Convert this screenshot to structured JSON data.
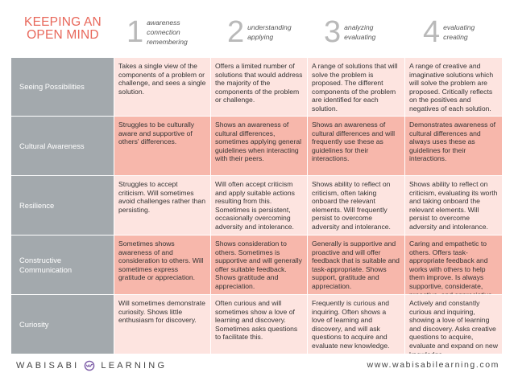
{
  "header": {
    "title_line1": "KEEPING AN",
    "title_line2": "OPEN MIND",
    "levels": [
      {
        "number": "1",
        "lines": [
          "awareness",
          "connection",
          "remembering"
        ]
      },
      {
        "number": "2",
        "lines": [
          "understanding",
          "applying"
        ]
      },
      {
        "number": "3",
        "lines": [
          "analyzing",
          "evaluating"
        ]
      },
      {
        "number": "4",
        "lines": [
          "evaluating",
          "creating"
        ]
      }
    ]
  },
  "rows": [
    {
      "label": "Seeing Possibilities",
      "cells": [
        "Takes a single view of the components of a problem or challenge, and sees a single solution.",
        "Offers a limited number of solutions that would address the majority of the components of the problem or challenge.",
        "A range of solutions that will solve the problem is proposed. The different components of the problem are identified for each solution.",
        "A range of creative and imaginative solutions which will solve the problem are proposed. Critically reflects on the positives and negatives of each solution."
      ]
    },
    {
      "label": "Cultural Awareness",
      "cells": [
        "Struggles to be culturally aware and supportive of others' differences.",
        "Shows an awareness of cultural differences, sometimes applying general guidelines when interacting with their peers.",
        "Shows an awareness of cultural differences and will frequently use these as guidelines for their interactions.",
        "Demonstrates awareness of cultural differences and always uses these as guidelines for their interactions."
      ]
    },
    {
      "label": "Resilience",
      "cells": [
        "Struggles to accept criticism. Will sometimes avoid challenges rather than persisting.",
        "Will often accept criticism and apply suitable actions resulting from this. Sometimes is persistent, occasionally overcoming adversity and intolerance.",
        "Shows ability to reflect on criticism, often taking onboard the relevant elements. Will frequently persist to overcome adversity and intolerance.",
        "Shows ability to reflect on criticism, evaluating its worth and taking onboard the relevant elements. Will persist to overcome adversity and intolerance."
      ]
    },
    {
      "label": "Constructive Communication",
      "cells": [
        "Sometimes shows awareness of and consideration to others. Will sometimes express gratitude or appreciation.",
        "Shows consideration to others. Sometimes is supportive and will generally offer suitable feedback. Shows gratitude and appreciation.",
        "Generally is supportive and proactive and will offer feedback that is suitable and task-appropriate. Shows support, gratitude and appreciation.",
        "Caring and empathetic to others. Offers task-appropriate feedback and works with others to help them improve. Is always supportive, considerate, proactive, and appreciative."
      ]
    },
    {
      "label": "Curiosity",
      "cells": [
        "Will sometimes demonstrate curiosity. Shows little enthusiasm for discovery.",
        "Often curious and will sometimes show a love of learning and discovery. Sometimes asks questions to facilitate this.",
        "Frequently is curious and inquiring. Often shows a love of learning and discovery, and will ask questions to acquire and evaluate new knowledge.",
        "Actively and constantly curious and inquiring, showing a love of learning and discovery. Asks creative questions to acquire, evaluate and expand on new knowledge."
      ]
    }
  ],
  "footer": {
    "brand_left": "WABISABI",
    "brand_right": "LEARNING",
    "url": "www.wabisabilearning.com"
  },
  "colors": {
    "title": "#e8675a",
    "rowhead": "#a3a9ad",
    "cell_light": "#fde4e0",
    "cell_dark": "#f7b7ab",
    "logo": "#7b5aa6"
  }
}
